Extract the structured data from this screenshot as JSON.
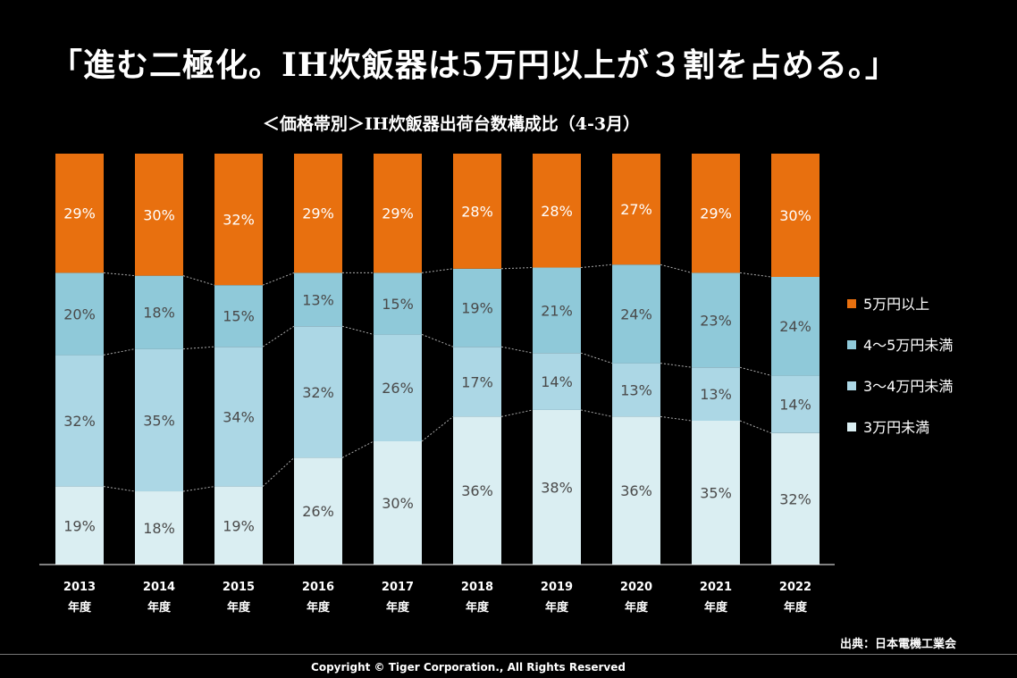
{
  "headline": "「進む二極化。IH炊飯器は5万円以上が３割を占める。」",
  "source": "出典：日本電機工業会",
  "copyright": "Copyright © Tiger Corporation., All Rights Reserved",
  "chart_data": {
    "type": "bar",
    "stacked": true,
    "title": "＜価格帯別＞IH炊飯器出荷台数構成比（4-3月）",
    "categories": [
      "2013",
      "2014",
      "2015",
      "2016",
      "2017",
      "2018",
      "2019",
      "2020",
      "2021",
      "2022"
    ],
    "category_suffix": "年度",
    "legend_position": "right",
    "ylim": [
      0,
      100
    ],
    "series": [
      {
        "name": "3万円未満",
        "color": "#daeef2",
        "values": [
          19,
          18,
          19,
          26,
          30,
          36,
          38,
          36,
          35,
          32
        ]
      },
      {
        "name": "3～4万円未満",
        "color": "#acd7e5",
        "values": [
          32,
          35,
          34,
          32,
          26,
          17,
          14,
          13,
          13,
          14
        ]
      },
      {
        "name": "4～5万円未満",
        "color": "#8fc9d9",
        "values": [
          20,
          18,
          15,
          13,
          15,
          19,
          21,
          24,
          23,
          24
        ]
      },
      {
        "name": "5万円以上",
        "color": "#e8700f",
        "values": [
          29,
          30,
          32,
          29,
          29,
          28,
          28,
          27,
          29,
          30
        ]
      }
    ],
    "legend_order": [
      "5万円以上",
      "4～5万円未満",
      "3～4万円未満",
      "3万円未満"
    ]
  }
}
